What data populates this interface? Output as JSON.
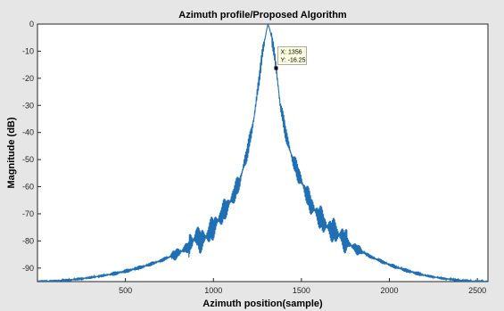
{
  "chart_data": {
    "type": "line",
    "title": "Azimuth profile/Proposed Algorithm",
    "xlabel": "Azimuth position(sample)",
    "ylabel": "Magnitude (dB)",
    "xlim": [
      0,
      2560
    ],
    "ylim": [
      -95,
      0
    ],
    "x_ticks": [
      500,
      1000,
      1500,
      2000,
      2500
    ],
    "y_ticks": [
      0,
      -10,
      -20,
      -30,
      -40,
      -50,
      -60,
      -70,
      -80,
      -90
    ],
    "grid": false,
    "legend": "none",
    "line_color": "#1f6fb5",
    "series": [
      {
        "x": [
          0,
          100,
          200,
          300,
          400,
          500,
          600,
          700,
          800,
          850,
          880,
          900,
          920,
          950,
          1000,
          1050,
          1100,
          1150,
          1200,
          1230,
          1260,
          1280,
          1300,
          1310,
          1320,
          1340,
          1356,
          1380,
          1420,
          1450,
          1500,
          1550,
          1600,
          1650,
          1700,
          1720,
          1750,
          1800,
          1900,
          2000,
          2100,
          2200,
          2300,
          2400,
          2500,
          2560
        ],
        "y": [
          -95,
          -94.8,
          -94.3,
          -93.5,
          -92.5,
          -91.2,
          -89.5,
          -87.3,
          -84.5,
          -82.5,
          -80.5,
          -78,
          -80,
          -79,
          -75,
          -70,
          -65,
          -58,
          -45,
          -35,
          -20,
          -10,
          -3,
          0,
          -2,
          -8,
          -16.25,
          -30,
          -43,
          -50,
          -58,
          -66,
          -71,
          -75,
          -77,
          -78,
          -80,
          -82.5,
          -86,
          -88.8,
          -91,
          -92.7,
          -93.8,
          -94.5,
          -95,
          -95
        ]
      }
    ],
    "datatip": {
      "x_text": "X: 1356",
      "y_text": "Y: -16.25",
      "x": 1356,
      "y": -16.25
    }
  }
}
